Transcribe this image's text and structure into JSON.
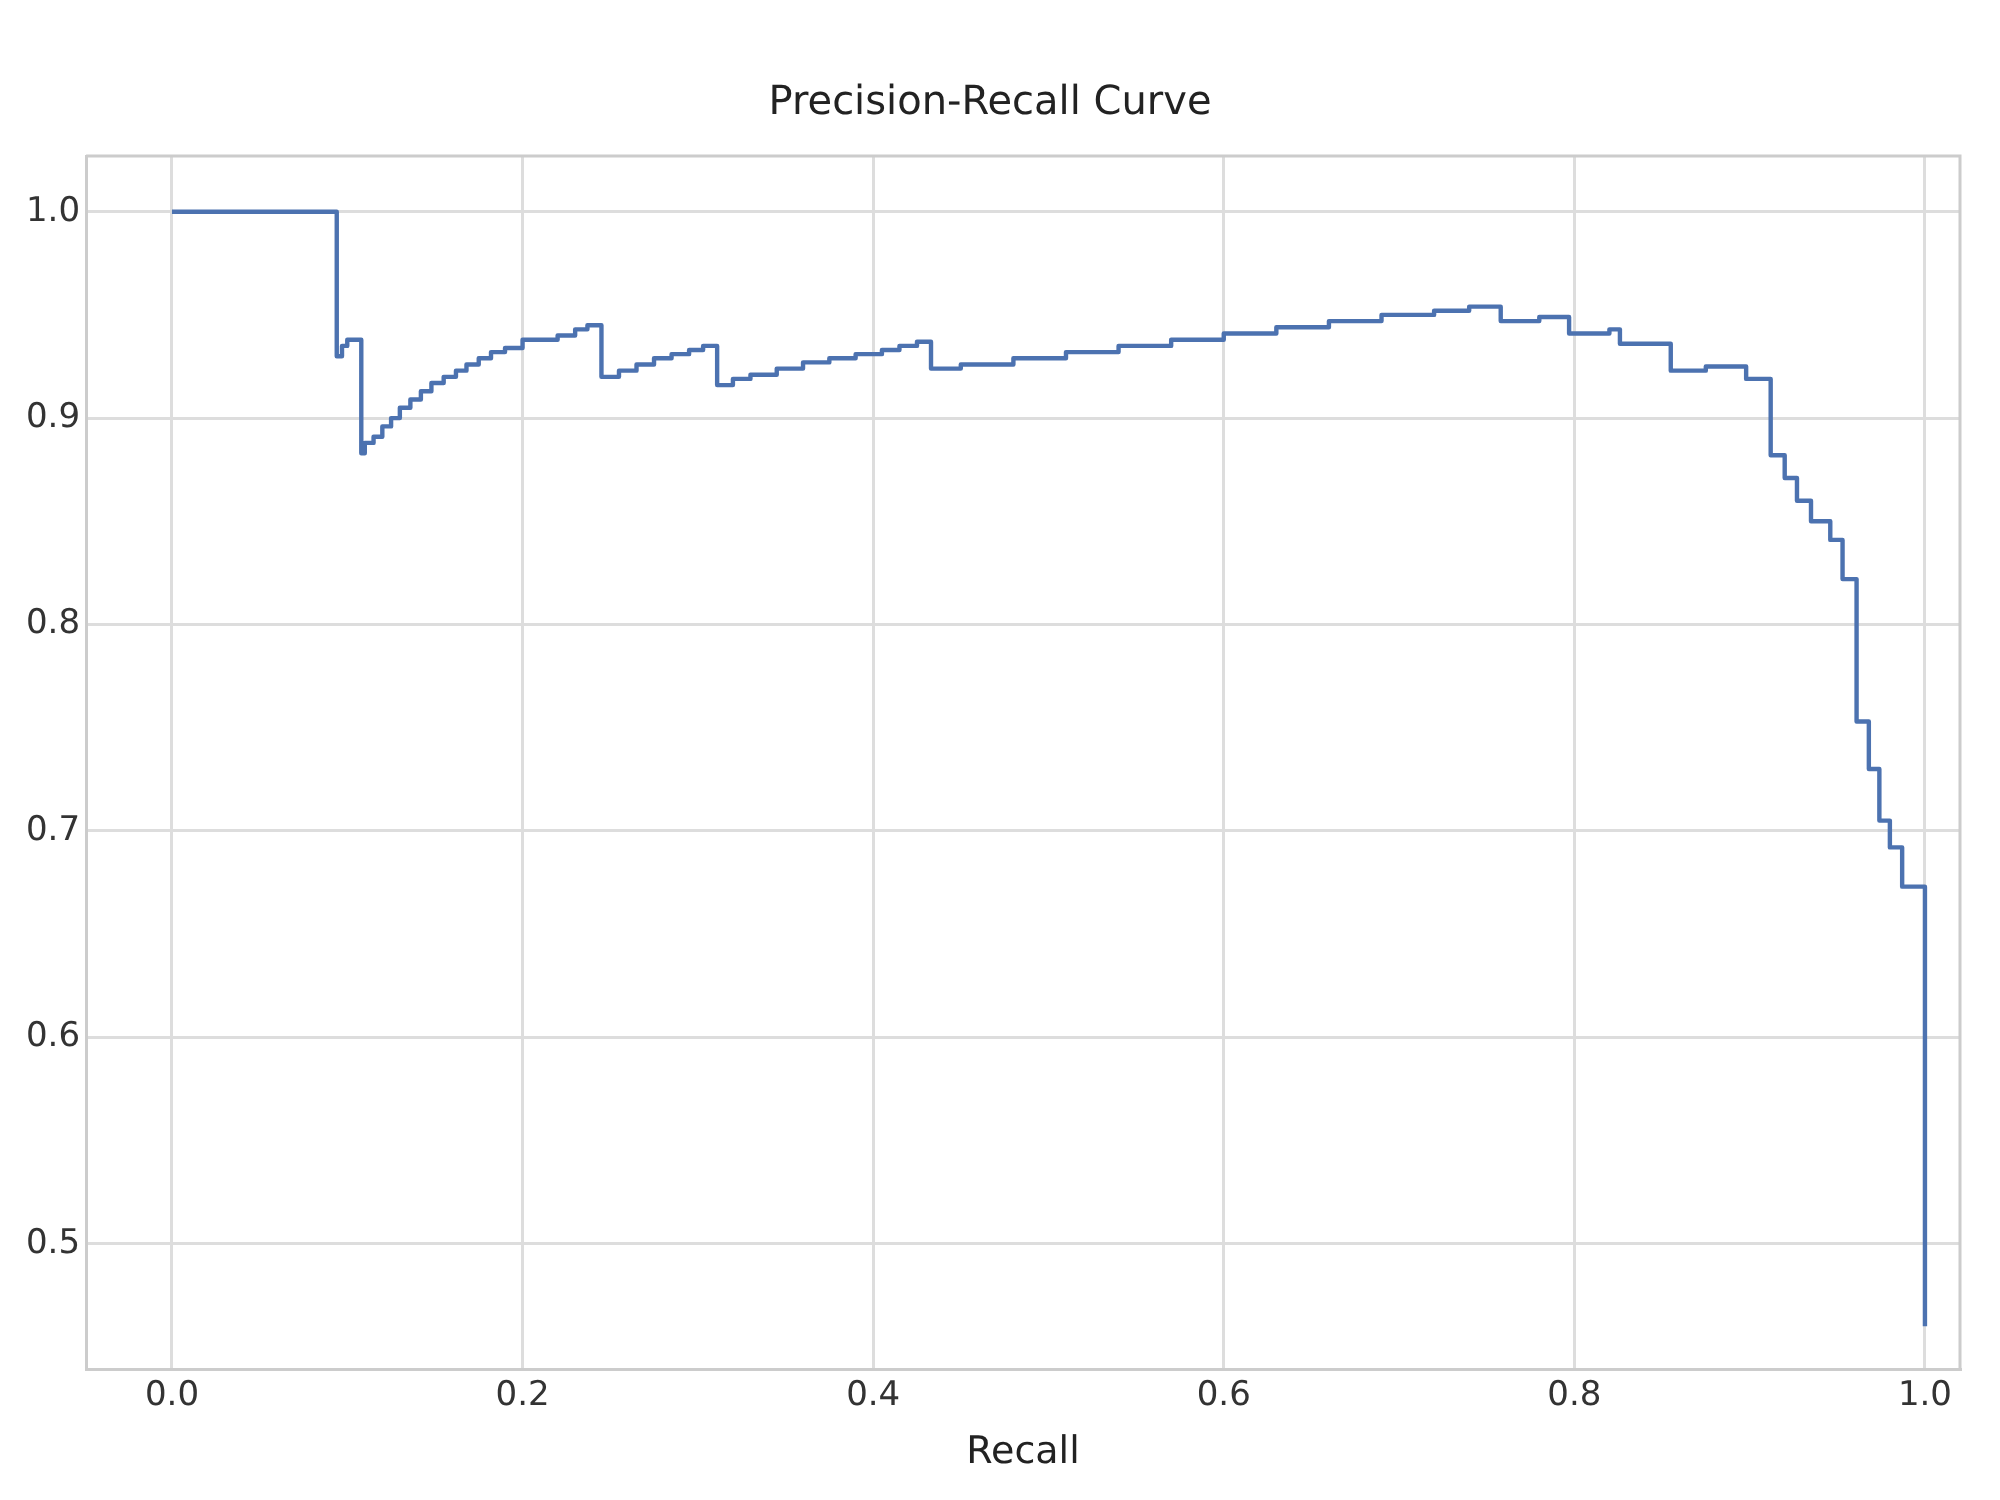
{
  "chart_data": {
    "type": "step",
    "title": "Precision-Recall Curve",
    "xlabel": "Recall",
    "xlim": [
      -0.049,
      1.02
    ],
    "xticks": [
      {
        "value": 0,
        "label": "0.0"
      },
      0.2,
      0.4,
      0.6,
      0.8,
      {
        "value": 1,
        "label": "1.0"
      }
    ],
    "ylim": [
      0.439,
      1.027
    ],
    "yticks": [
      0.5,
      0.6,
      0.7,
      0.8,
      0.9,
      {
        "value": 1,
        "label": "1.0"
      }
    ],
    "grid": true,
    "legend": false,
    "marker": "none",
    "line_style": "solid",
    "series": [
      {
        "color": "#4c72b0",
        "x": [
          0,
          0.094,
          0.097,
          0.1,
          0.108,
          0.11,
          0.115,
          0.12,
          0.125,
          0.13,
          0.136,
          0.142,
          0.148,
          0.155,
          0.162,
          0.168,
          0.175,
          0.182,
          0.19,
          0.2,
          0.22,
          0.23,
          0.237,
          0.245,
          0.255,
          0.265,
          0.275,
          0.285,
          0.295,
          0.303,
          0.311,
          0.32,
          0.33,
          0.345,
          0.36,
          0.375,
          0.39,
          0.405,
          0.415,
          0.425,
          0.433,
          0.45,
          0.48,
          0.51,
          0.54,
          0.57,
          0.6,
          0.63,
          0.66,
          0.69,
          0.72,
          0.74,
          0.758,
          0.78,
          0.797,
          0.82,
          0.826,
          0.855,
          0.875,
          0.898,
          0.912,
          0.92,
          0.927,
          0.935,
          0.946,
          0.953,
          0.961,
          0.968,
          0.974,
          0.98,
          0.987,
          1.0
        ],
        "values": [
          1.0,
          0.93,
          0.935,
          0.938,
          0.883,
          0.888,
          0.891,
          0.896,
          0.9,
          0.905,
          0.909,
          0.913,
          0.917,
          0.92,
          0.923,
          0.926,
          0.929,
          0.932,
          0.934,
          0.938,
          0.94,
          0.943,
          0.945,
          0.92,
          0.923,
          0.926,
          0.929,
          0.931,
          0.933,
          0.935,
          0.916,
          0.919,
          0.921,
          0.924,
          0.927,
          0.929,
          0.931,
          0.933,
          0.935,
          0.937,
          0.924,
          0.926,
          0.929,
          0.932,
          0.935,
          0.938,
          0.941,
          0.944,
          0.947,
          0.95,
          0.952,
          0.954,
          0.947,
          0.949,
          0.941,
          0.943,
          0.936,
          0.923,
          0.925,
          0.919,
          0.882,
          0.871,
          0.86,
          0.85,
          0.841,
          0.822,
          0.753,
          0.73,
          0.705,
          0.692,
          0.673,
          0.46
        ]
      }
    ]
  }
}
